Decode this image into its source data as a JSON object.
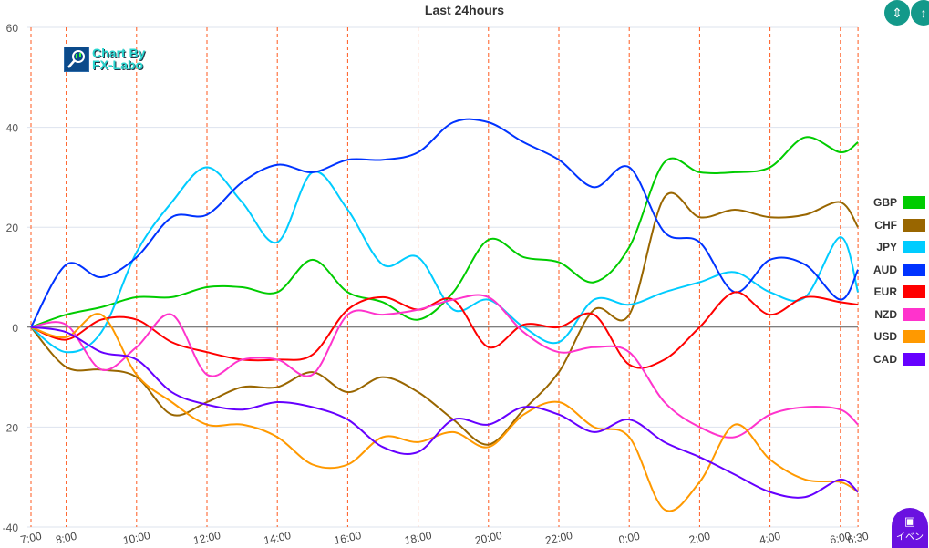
{
  "chart_data": {
    "type": "line",
    "title": "Last 24hours",
    "xlabel": "",
    "ylabel": "",
    "ylim": [
      -40,
      60
    ],
    "yticks": [
      60,
      40,
      20,
      0,
      -20,
      -40
    ],
    "x": [
      "7:00",
      "8:00",
      "9:00",
      "10:00",
      "11:00",
      "12:00",
      "13:00",
      "14:00",
      "15:00",
      "16:00",
      "17:00",
      "18:00",
      "19:00",
      "20:00",
      "21:00",
      "22:00",
      "23:00",
      "0:00",
      "1:00",
      "2:00",
      "3:00",
      "4:00",
      "5:00",
      "6:00",
      "6:30"
    ],
    "xtick_labels": [
      "7:00",
      "8:00",
      "10:00",
      "12:00",
      "14:00",
      "16:00",
      "18:00",
      "20:00",
      "22:00",
      "0:00",
      "2:00",
      "4:00",
      "6:00",
      "6:30"
    ],
    "grid": true,
    "vertical_marker_color": "#ff5a1f",
    "legend_position": "right",
    "series": [
      {
        "name": "GBP",
        "color": "#00cc00",
        "values": [
          0,
          2.5,
          4,
          6,
          6,
          8,
          8,
          7,
          13.5,
          7,
          5,
          1.5,
          7,
          17.5,
          14,
          13,
          9,
          16,
          33,
          31,
          31,
          32,
          38,
          35,
          37
        ]
      },
      {
        "name": "CHF",
        "color": "#996600",
        "values": [
          0,
          -8,
          -8.5,
          -10,
          -17.5,
          -15,
          -12,
          -12,
          -9,
          -13,
          -10,
          -13,
          -18.5,
          -23.5,
          -16.5,
          -9,
          3.5,
          2.5,
          26,
          22,
          23.5,
          22,
          22.5,
          25,
          20
        ]
      },
      {
        "name": "JPY",
        "color": "#00ccff",
        "values": [
          0,
          -5,
          -1,
          15,
          25,
          32,
          25,
          17,
          31,
          23.5,
          12.5,
          14,
          3.5,
          5.5,
          0,
          -3,
          5.5,
          4.5,
          7,
          9,
          11,
          7,
          6,
          18,
          7
        ]
      },
      {
        "name": "AUD",
        "color": "#0033ff",
        "values": [
          0,
          12.5,
          10,
          14,
          22,
          22.5,
          29,
          32.5,
          31,
          33.5,
          33.5,
          35,
          41,
          41,
          37,
          33.5,
          28,
          32,
          19,
          17,
          7,
          13.5,
          12.5,
          5.5,
          11.5
        ]
      },
      {
        "name": "EUR",
        "color": "#ff0000",
        "values": [
          0,
          -2.5,
          1.5,
          1.5,
          -3,
          -5,
          -6.5,
          -6.5,
          -5.5,
          3.5,
          6,
          3.5,
          5.5,
          -4,
          0.5,
          0,
          2.5,
          -7.5,
          -6.5,
          0,
          7,
          2.5,
          6,
          5,
          4.5
        ]
      },
      {
        "name": "NZD",
        "color": "#ff33cc",
        "values": [
          0,
          0.5,
          -8.5,
          -4,
          2.5,
          -9.5,
          -6.5,
          -6.5,
          -9.5,
          2.5,
          2.5,
          3.5,
          5.5,
          6,
          -1,
          -5,
          -4,
          -5,
          -15,
          -20,
          -22,
          -17.5,
          -16,
          -16.5,
          -19.5
        ]
      },
      {
        "name": "USD",
        "color": "#ff9900",
        "values": [
          0,
          -2,
          2.5,
          -9.5,
          -15,
          -19.5,
          -19.5,
          -22,
          -27.5,
          -27.5,
          -22,
          -23,
          -21,
          -24,
          -17.5,
          -15,
          -20,
          -22,
          -36.5,
          -31,
          -19.5,
          -26.5,
          -30.5,
          -31,
          -33
        ]
      },
      {
        "name": "CAD",
        "color": "#6600ff",
        "values": [
          0,
          -1,
          -5,
          -6.5,
          -13,
          -15.5,
          -16.5,
          -15,
          -16,
          -18.5,
          -24,
          -25,
          -18.5,
          -19.5,
          -16,
          -17.5,
          -21,
          -18.5,
          -23,
          -26,
          -29.5,
          -33,
          -34,
          -30.5,
          -33
        ]
      }
    ]
  },
  "logo": {
    "line1": "Chart By",
    "line2": "FX-Labo"
  },
  "buttons": {
    "event_label": "イベン",
    "collapse_icon": "compress-vertical-icon",
    "expand_icon": "expand-vertical-icon",
    "event_icon": "calendar-icon"
  }
}
